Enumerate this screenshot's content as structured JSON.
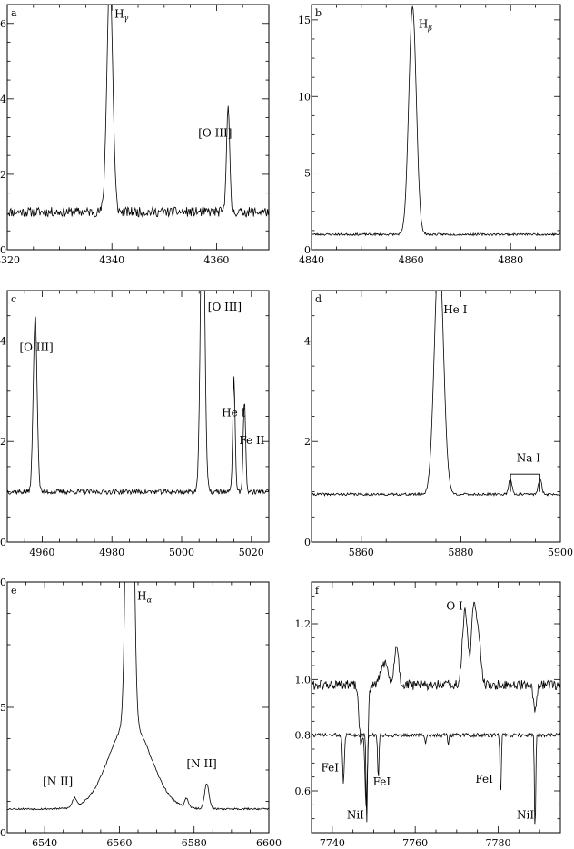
{
  "chart_data": [
    {
      "panel": "a",
      "type": "line",
      "xlim": [
        4320,
        4370
      ],
      "ylim": [
        0,
        6.5
      ],
      "xticks": [
        4320,
        4340,
        4360
      ],
      "xtick_labels": [
        "4320",
        "4340",
        "4360"
      ],
      "yticks": [
        0,
        2,
        4,
        6
      ],
      "ytick_labels": [
        "0",
        "2",
        "4",
        "6"
      ],
      "continuum": 1.0,
      "noise": 0.13,
      "seed": 11,
      "lines": [
        {
          "center": 4339.6,
          "peak": 6.3,
          "sigma": 0.55
        },
        {
          "center": 4362.2,
          "peak": 2.85,
          "sigma": 0.3
        }
      ],
      "annotations": [
        {
          "text": "H",
          "sub": "γ",
          "x": 4340.5,
          "y": 6.15
        },
        {
          "text": "[O III]",
          "x": 4356.5,
          "y": 3.0
        }
      ]
    },
    {
      "panel": "b",
      "type": "line",
      "xlim": [
        4840,
        4890
      ],
      "ylim": [
        0,
        16
      ],
      "xticks": [
        4840,
        4860,
        4880
      ],
      "xtick_labels": [
        "4840",
        "4860",
        "4880"
      ],
      "yticks": [
        0,
        5,
        10,
        15
      ],
      "ytick_labels": [
        "0",
        "5",
        "10",
        "15"
      ],
      "continuum": 1.0,
      "noise": 0.07,
      "seed": 23,
      "lines": [
        {
          "center": 4860.3,
          "peak": 14.9,
          "sigma": 0.75
        }
      ],
      "annotations": [
        {
          "text": "H",
          "sub": "β",
          "x": 4861.5,
          "y": 14.5
        }
      ]
    },
    {
      "panel": "c",
      "type": "line",
      "xlim": [
        4950,
        5025
      ],
      "ylim": [
        0,
        5
      ],
      "xticks": [
        4960,
        4980,
        5000,
        5020
      ],
      "xtick_labels": [
        "4960",
        "4980",
        "5000",
        "5020"
      ],
      "yticks": [
        0,
        2,
        4
      ],
      "ytick_labels": [
        "0",
        "2",
        "4"
      ],
      "continuum": 1.0,
      "noise": 0.05,
      "seed": 37,
      "lines": [
        {
          "center": 4958.0,
          "peak": 3.5,
          "sigma": 0.55
        },
        {
          "center": 5006.0,
          "peak": 6.5,
          "sigma": 0.6
        },
        {
          "center": 5015.0,
          "peak": 2.25,
          "sigma": 0.35
        },
        {
          "center": 5018.0,
          "peak": 1.8,
          "sigma": 0.35
        }
      ],
      "annotations": [
        {
          "text": "[O III]",
          "x": 4953.5,
          "y": 3.8
        },
        {
          "text": "[O III]",
          "x": 5007.5,
          "y": 4.6
        },
        {
          "text": "He I",
          "x": 5011.5,
          "y": 2.5
        },
        {
          "text": "Fe II",
          "x": 5016.5,
          "y": 1.95
        }
      ]
    },
    {
      "panel": "d",
      "type": "line",
      "xlim": [
        5850,
        5900
      ],
      "ylim": [
        0,
        5
      ],
      "xticks": [
        5860,
        5880,
        5900
      ],
      "xtick_labels": [
        "5860",
        "5880",
        "5900"
      ],
      "yticks": [
        0,
        2,
        4
      ],
      "ytick_labels": [
        "0",
        "2",
        "4"
      ],
      "continuum": 0.95,
      "noise": 0.025,
      "seed": 41,
      "lines": [
        {
          "center": 5875.6,
          "peak": 4.92,
          "sigma": 0.9
        },
        {
          "center": 5889.95,
          "peak": 0.3,
          "sigma": 0.35
        },
        {
          "center": 5895.9,
          "peak": 0.3,
          "sigma": 0.35
        }
      ],
      "annotations": [
        {
          "text": "He I",
          "x": 5876.5,
          "y": 4.55
        },
        {
          "text": "Na I",
          "x": 5891.2,
          "y": 1.6
        }
      ],
      "bracket": {
        "x1": 5890.0,
        "x2": 5895.9,
        "y_top": 1.35,
        "y_bottom": 1.0
      }
    },
    {
      "panel": "e",
      "type": "line",
      "xlim": [
        6530,
        6600
      ],
      "ylim": [
        0,
        10
      ],
      "xticks": [
        6540,
        6560,
        6580,
        6600
      ],
      "xtick_labels": [
        "6540",
        "6560",
        "6580",
        "6600"
      ],
      "yticks": [
        0,
        5,
        10
      ],
      "ytick_labels": [
        "0",
        "5",
        "10"
      ],
      "continuum": 0.95,
      "noise": 0.035,
      "seed": 53,
      "lines": [
        {
          "center": 6562.8,
          "peak": 24.0,
          "sigma": 0.8,
          "wings": 3.5,
          "wing_sigma": 5.5
        },
        {
          "center": 6548.0,
          "peak": 0.35,
          "sigma": 0.6
        },
        {
          "center": 6583.4,
          "peak": 1.0,
          "sigma": 0.6
        },
        {
          "center": 6578.0,
          "peak": 0.35,
          "sigma": 0.5
        }
      ],
      "annotations": [
        {
          "text": "H",
          "sub": "α",
          "x": 6564.8,
          "y": 9.3
        },
        {
          "text": "[N II]",
          "x": 6539.5,
          "y": 1.9
        },
        {
          "text": "[N II]",
          "x": 6578.0,
          "y": 2.6
        }
      ]
    },
    {
      "panel": "f",
      "type": "line",
      "xlim": [
        7735,
        7795
      ],
      "ylim": [
        0.45,
        1.35
      ],
      "xticks": [
        7740,
        7760,
        7780
      ],
      "xtick_labels": [
        "7740",
        "7760",
        "7780"
      ],
      "yticks": [
        0.6,
        0.8,
        1.0,
        1.2
      ],
      "ytick_labels": [
        "0.6",
        "0.8",
        "1.0",
        "1.2"
      ],
      "series": [
        {
          "continuum": 0.98,
          "noise": 0.018,
          "seed": 61,
          "lines": [
            {
              "center": 7772.0,
              "peak": 0.27,
              "sigma": 0.6
            },
            {
              "center": 7774.2,
              "peak": 0.3,
              "sigma": 0.6
            },
            {
              "center": 7775.4,
              "peak": 0.14,
              "sigma": 0.5
            },
            {
              "center": 7752.5,
              "peak": 0.08,
              "sigma": 0.8
            },
            {
              "center": 7755.5,
              "peak": 0.14,
              "sigma": 0.5
            },
            {
              "center": 7748.2,
              "peak": -0.42,
              "sigma": 0.35
            },
            {
              "center": 7747.0,
              "peak": -0.22,
              "sigma": 0.5
            },
            {
              "center": 7788.9,
              "peak": -0.1,
              "sigma": 0.4
            }
          ]
        },
        {
          "continuum": 0.8,
          "noise": 0.007,
          "seed": 73,
          "lines": [
            {
              "center": 7742.7,
              "peak": -0.17,
              "sigma": 0.2
            },
            {
              "center": 7748.3,
              "peak": -0.32,
              "sigma": 0.15
            },
            {
              "center": 7751.1,
              "peak": -0.17,
              "sigma": 0.15
            },
            {
              "center": 7780.6,
              "peak": -0.22,
              "sigma": 0.15
            },
            {
              "center": 7788.9,
              "peak": -0.35,
              "sigma": 0.15
            },
            {
              "center": 7768.0,
              "peak": -0.04,
              "sigma": 0.15
            },
            {
              "center": 7762.5,
              "peak": -0.03,
              "sigma": 0.15
            }
          ]
        }
      ],
      "annotations": [
        {
          "text": "O I",
          "x": 7767.5,
          "y": 1.25
        },
        {
          "text": "FeI",
          "x": 7737.3,
          "y": 0.67
        },
        {
          "text": "FeI",
          "x": 7749.8,
          "y": 0.62
        },
        {
          "text": "NiI",
          "x": 7743.5,
          "y": 0.5
        },
        {
          "text": "FeI",
          "x": 7774.5,
          "y": 0.63
        },
        {
          "text": "NiI",
          "x": 7784.5,
          "y": 0.5
        }
      ]
    }
  ]
}
